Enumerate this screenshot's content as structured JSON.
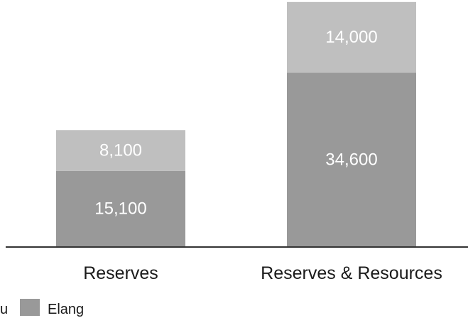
{
  "chart_data": {
    "type": "bar",
    "stacked": true,
    "categories": [
      "Reserves",
      "Reserves & Resources"
    ],
    "series": [
      {
        "name": "Elang",
        "values": [
          15100,
          34600
        ],
        "color": "#999999"
      },
      {
        "values": [
          8100,
          14000
        ],
        "color": "#bfbfbf"
      }
    ],
    "data_labels": [
      [
        "15,100",
        "34,600"
      ],
      [
        "8,100",
        "14,000"
      ]
    ],
    "legend": {
      "position": "bottom-left",
      "partial_text": "u"
    },
    "ylim": [
      0,
      49000
    ],
    "grid": false,
    "axes_visible": false,
    "baseline_color": "#333333"
  }
}
